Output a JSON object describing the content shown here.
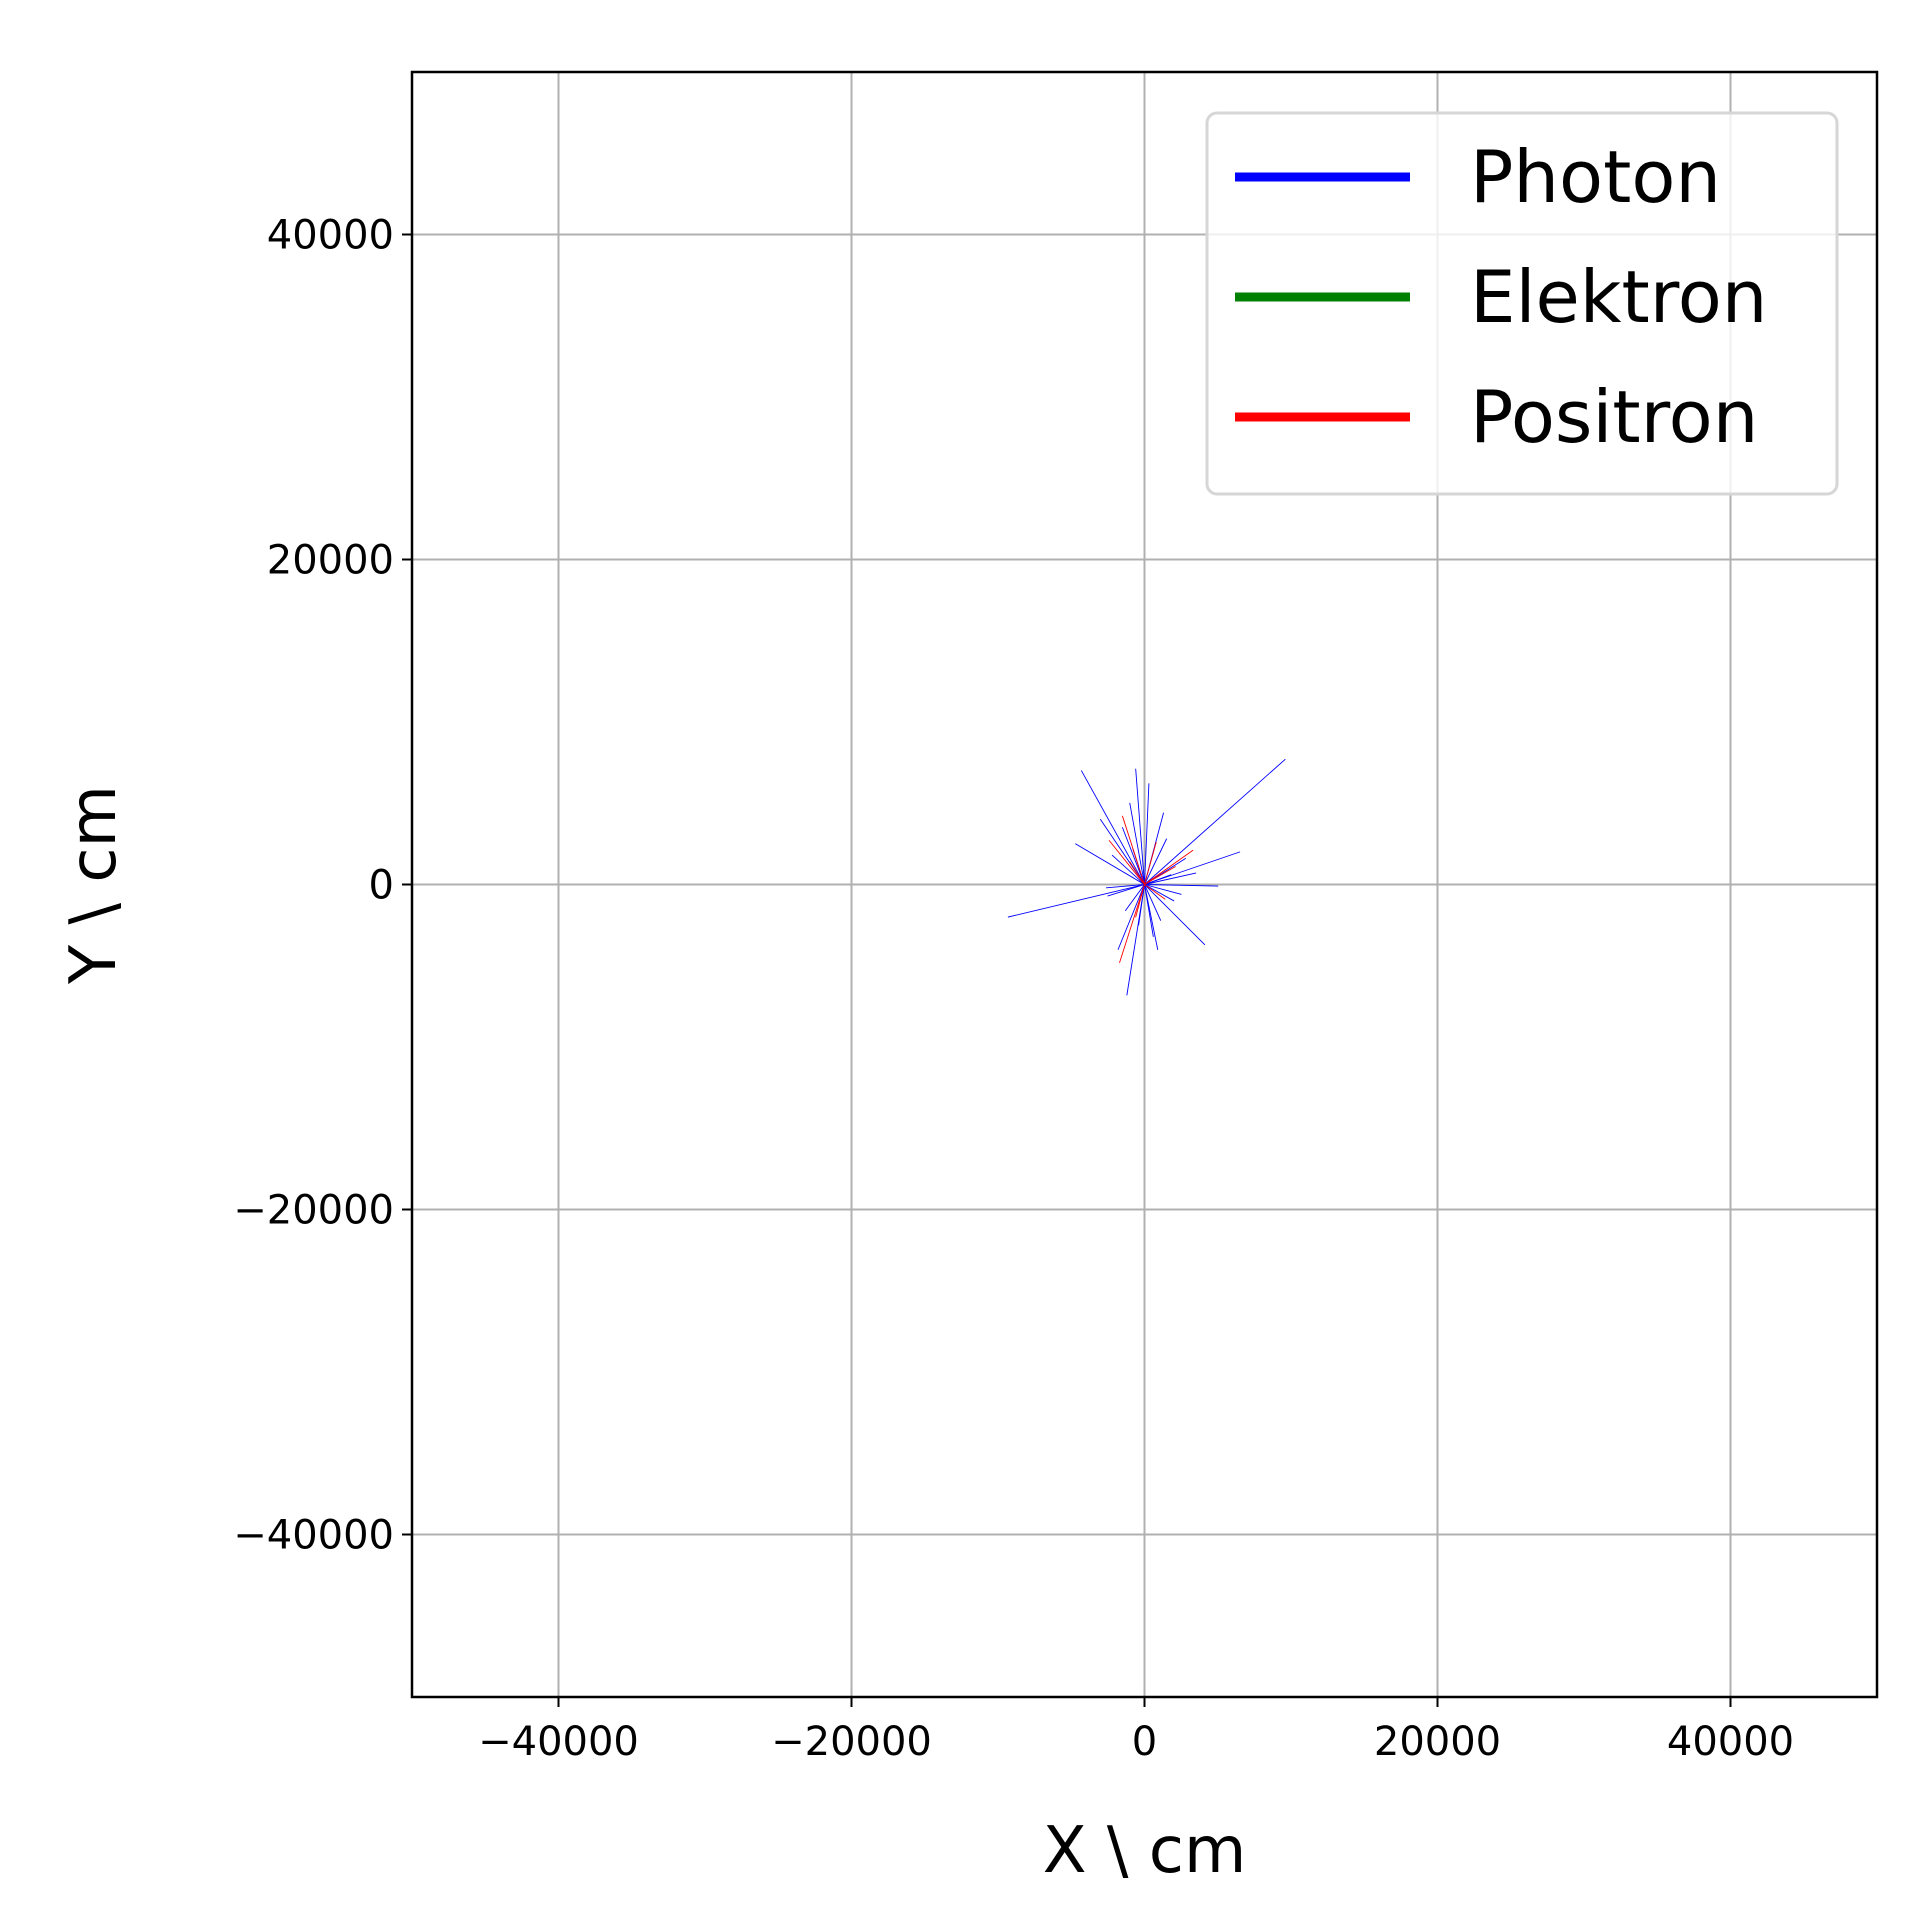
{
  "chart_data": {
    "type": "line",
    "xlabel": "X \\ cm",
    "ylabel": "Y \\ cm",
    "xlim": [
      -50000,
      50000
    ],
    "ylim": [
      -50000,
      50000
    ],
    "xticks": [
      -40000,
      -20000,
      0,
      20000,
      40000
    ],
    "yticks": [
      -40000,
      -20000,
      0,
      20000,
      40000
    ],
    "xtick_labels": [
      "−40000",
      "−20000",
      "0",
      "20000",
      "40000"
    ],
    "ytick_labels": [
      "−40000",
      "−20000",
      "0",
      "20000",
      "40000"
    ],
    "grid": true,
    "legend_position": "top-right",
    "series": [
      {
        "name": "Photon",
        "color": "#0000ff",
        "segments": [
          [
            [
              0,
              0
            ],
            [
              9600,
              7700
            ]
          ],
          [
            [
              0,
              0
            ],
            [
              -9300,
              -2000
            ]
          ],
          [
            [
              0,
              0
            ],
            [
              6500,
              2000
            ]
          ],
          [
            [
              0,
              0
            ],
            [
              -4300,
              7000
            ]
          ],
          [
            [
              0,
              0
            ],
            [
              -600,
              7100
            ]
          ],
          [
            [
              0,
              0
            ],
            [
              4100,
              -3700
            ]
          ],
          [
            [
              0,
              0
            ],
            [
              -4700,
              2500
            ]
          ],
          [
            [
              0,
              0
            ],
            [
              -1200,
              -6800
            ]
          ],
          [
            [
              0,
              0
            ],
            [
              5000,
              -100
            ]
          ],
          [
            [
              0,
              0
            ],
            [
              1300,
              4400
            ]
          ],
          [
            [
              0,
              0
            ],
            [
              900,
              -4000
            ]
          ],
          [
            [
              0,
              0
            ],
            [
              -2500,
              -700
            ]
          ],
          [
            [
              0,
              0
            ],
            [
              -1000,
              5000
            ]
          ],
          [
            [
              0,
              0
            ],
            [
              2800,
              1600
            ]
          ],
          [
            [
              0,
              0
            ],
            [
              -1800,
              -4000
            ]
          ],
          [
            [
              0,
              0
            ],
            [
              2000,
              -1000
            ]
          ],
          [
            [
              0,
              0
            ],
            [
              -3000,
              4000
            ]
          ],
          [
            [
              0,
              0
            ],
            [
              300,
              6200
            ]
          ],
          [
            [
              0,
              0
            ],
            [
              -1500,
              3500
            ]
          ],
          [
            [
              0,
              0
            ],
            [
              3500,
              700
            ]
          ],
          [
            [
              0,
              0
            ],
            [
              -2200,
              1800
            ]
          ],
          [
            [
              0,
              0
            ],
            [
              600,
              -3200
            ]
          ],
          [
            [
              0,
              0
            ],
            [
              1500,
              2800
            ]
          ],
          [
            [
              0,
              0
            ],
            [
              -400,
              -2500
            ]
          ],
          [
            [
              0,
              0
            ],
            [
              2500,
              -600
            ]
          ],
          [
            [
              0,
              0
            ],
            [
              -2600,
              -200
            ]
          ],
          [
            [
              0,
              0
            ],
            [
              1100,
              -2200
            ]
          ],
          [
            [
              0,
              0
            ],
            [
              -800,
              2200
            ]
          ],
          [
            [
              0,
              0
            ],
            [
              1800,
              600
            ]
          ],
          [
            [
              0,
              0
            ],
            [
              -1300,
              -1600
            ]
          ]
        ]
      },
      {
        "name": "Elektron",
        "color": "#008000",
        "segments": []
      },
      {
        "name": "Positron",
        "color": "#ff0000",
        "segments": [
          [
            [
              0,
              0
            ],
            [
              -1500,
              4200
            ]
          ],
          [
            [
              0,
              0
            ],
            [
              3300,
              2100
            ]
          ],
          [
            [
              0,
              0
            ],
            [
              -1700,
              -4800
            ]
          ],
          [
            [
              0,
              0
            ],
            [
              -2400,
              2700
            ]
          ],
          [
            [
              0,
              0
            ],
            [
              2100,
              1100
            ]
          ],
          [
            [
              0,
              0
            ],
            [
              -600,
              -2000
            ]
          ],
          [
            [
              0,
              0
            ],
            [
              800,
              2600
            ]
          ],
          [
            [
              0,
              0
            ],
            [
              -1000,
              1400
            ]
          ],
          [
            [
              0,
              0
            ],
            [
              1400,
              -900
            ]
          ]
        ]
      }
    ]
  }
}
